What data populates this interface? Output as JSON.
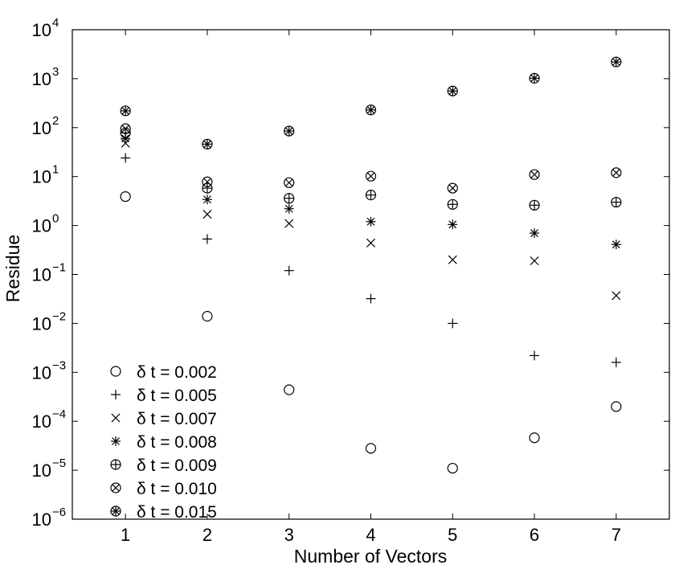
{
  "chart_data": {
    "type": "scatter",
    "title": "",
    "xlabel": "Number of Vectors",
    "ylabel": "Residue",
    "x_ticks": [
      "1",
      "2",
      "3",
      "4",
      "5",
      "6",
      "7"
    ],
    "y_ticks": [
      {
        "base": "10",
        "exp": "4"
      },
      {
        "base": "10",
        "exp": "3"
      },
      {
        "base": "10",
        "exp": "2"
      },
      {
        "base": "10",
        "exp": "1"
      },
      {
        "base": "10",
        "exp": "0"
      },
      {
        "base": "10",
        "exp": "−1"
      },
      {
        "base": "10",
        "exp": "−2"
      },
      {
        "base": "10",
        "exp": "−3"
      },
      {
        "base": "10",
        "exp": "−4"
      },
      {
        "base": "10",
        "exp": "−5"
      },
      {
        "base": "10",
        "exp": "−6"
      }
    ],
    "xlim": [
      0.35,
      7.65
    ],
    "ylim": [
      1e-06,
      10000
    ],
    "y_scale": "log",
    "grid": false,
    "legend_position": "bottom-left",
    "x": [
      1,
      2,
      3,
      4,
      5,
      6,
      7
    ],
    "series": [
      {
        "name": "δ t = 0.002",
        "marker": "circle",
        "values": [
          3.9,
          0.014,
          0.00044,
          2.8e-05,
          1.1e-05,
          4.6e-05,
          0.0002
        ]
      },
      {
        "name": "δ t = 0.005",
        "marker": "plus",
        "values": [
          24,
          0.53,
          0.12,
          0.032,
          0.01,
          0.0022,
          0.0016
        ]
      },
      {
        "name": "δ t = 0.007",
        "marker": "x",
        "values": [
          48,
          1.7,
          1.1,
          0.44,
          0.2,
          0.19,
          0.037
        ]
      },
      {
        "name": "δ t = 0.008",
        "marker": "asterisk",
        "values": [
          60,
          3.4,
          2.2,
          1.2,
          1.05,
          0.7,
          0.41
        ]
      },
      {
        "name": "δ t = 0.009",
        "marker": "circle-plus",
        "values": [
          78,
          5.8,
          3.6,
          4.2,
          2.7,
          2.6,
          3.0
        ]
      },
      {
        "name": "δ t = 0.010",
        "marker": "circle-x",
        "values": [
          95,
          7.8,
          7.5,
          10.2,
          5.8,
          11,
          12
        ]
      },
      {
        "name": "δ t = 0.015",
        "marker": "circle-star",
        "values": [
          220,
          46,
          85,
          230,
          560,
          1020,
          2200
        ]
      }
    ]
  }
}
